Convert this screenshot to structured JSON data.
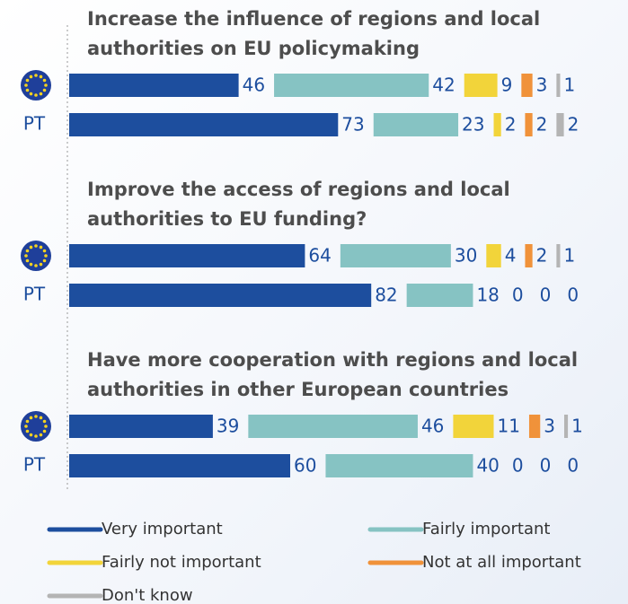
{
  "chart_data": {
    "type": "bar",
    "orientation": "horizontal",
    "stacked": true,
    "series": [
      {
        "name": "Very important",
        "color": "#1d4e9e"
      },
      {
        "name": "Fairly important",
        "color": "#86c3c3"
      },
      {
        "name": "Fairly not important",
        "color": "#f2d43a"
      },
      {
        "name": "Not at all important",
        "color": "#f0923a"
      },
      {
        "name": "Don't know",
        "color": "#b4b4b4"
      }
    ],
    "groups": [
      {
        "title": [
          "Increase the influence of regions and local",
          "authorities on EU policymaking"
        ],
        "categories": [
          null,
          "PT"
        ],
        "values": [
          [
            46,
            42,
            9,
            3,
            1
          ],
          [
            73,
            23,
            2,
            2,
            2
          ]
        ]
      },
      {
        "title": [
          "Improve the access of regions and local",
          "authorities to EU funding?"
        ],
        "categories": [
          null,
          "PT"
        ],
        "values": [
          [
            64,
            30,
            4,
            2,
            1
          ],
          [
            82,
            18,
            0,
            0,
            0
          ]
        ]
      },
      {
        "title": [
          "Have more cooperation with regions and local",
          "authorities in other European countries"
        ],
        "categories": [
          null,
          "PT"
        ],
        "values": [
          [
            39,
            46,
            11,
            3,
            1
          ],
          [
            60,
            40,
            0,
            0,
            0
          ]
        ]
      }
    ]
  }
}
